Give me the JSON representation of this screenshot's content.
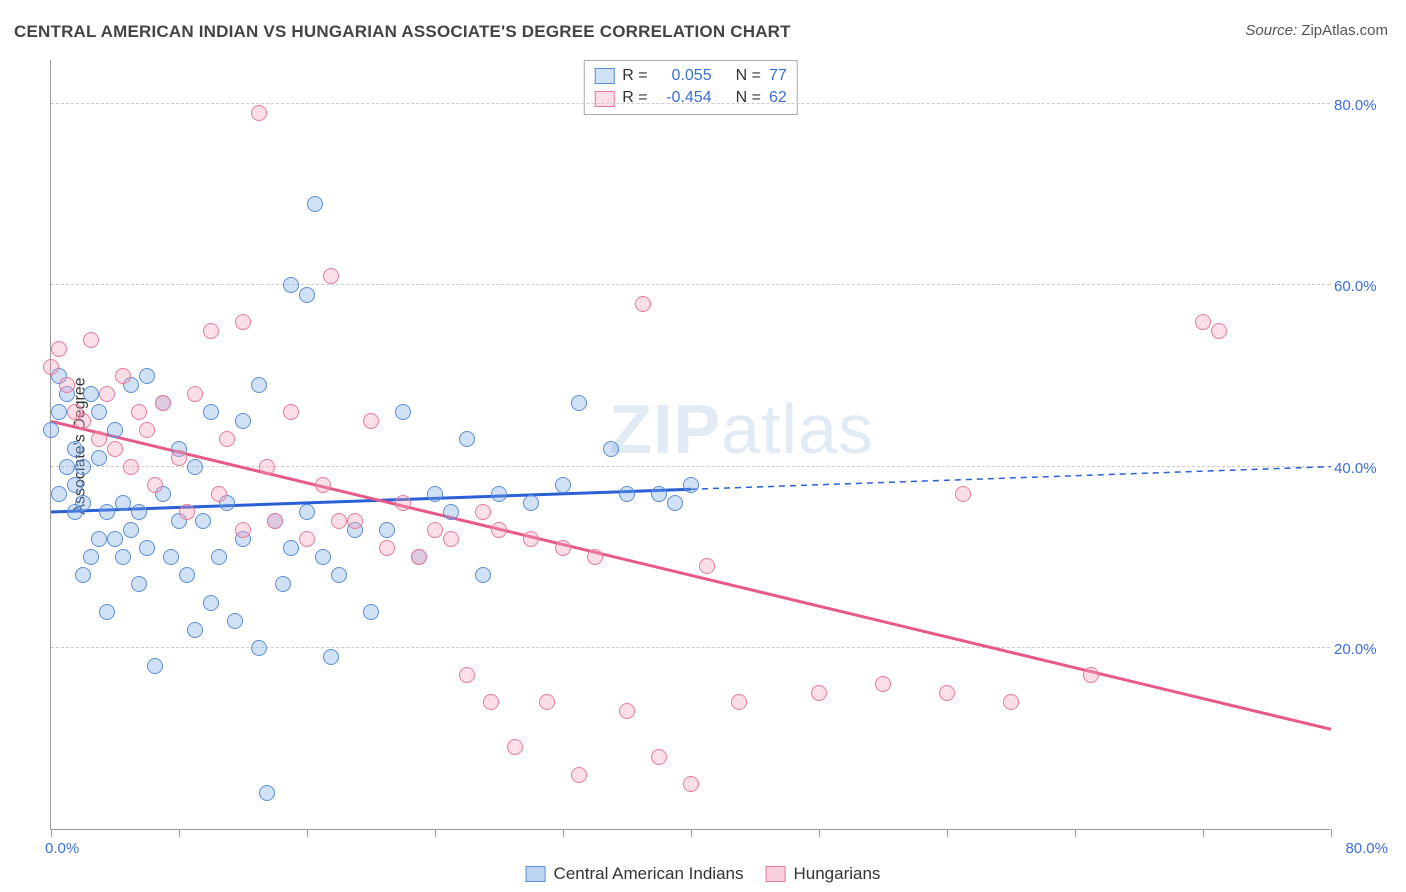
{
  "title": "CENTRAL AMERICAN INDIAN VS HUNGARIAN ASSOCIATE'S DEGREE CORRELATION CHART",
  "source_label": "Source:",
  "source_value": "ZipAtlas.com",
  "ylabel": "Associate's Degree",
  "watermark_bold": "ZIP",
  "watermark_light": "atlas",
  "chart": {
    "type": "scatter",
    "xlim": [
      0,
      80
    ],
    "ylim": [
      0,
      85
    ],
    "x_ticks": [
      0,
      8,
      16,
      24,
      32,
      40,
      48,
      56,
      64,
      72,
      80
    ],
    "x_tick_labels": {
      "0": "0.0%",
      "80": "80.0%"
    },
    "y_grid": [
      20,
      40,
      60,
      80
    ],
    "y_tick_labels": {
      "20": "20.0%",
      "40": "40.0%",
      "60": "60.0%",
      "80": "80.0%"
    },
    "background_color": "#ffffff",
    "grid_color": "#cccccc",
    "axis_color": "#999999",
    "label_color": "#3b6fd8",
    "point_radius": 8,
    "point_stroke_width": 1.5,
    "series": [
      {
        "name": "Central American Indians",
        "fill": "rgba(120,170,230,0.35)",
        "stroke": "#5a8ed8",
        "R_label": "R =",
        "R": "0.055",
        "N_label": "N =",
        "N": "77",
        "trend": {
          "x1": 0,
          "y1": 35,
          "x2": 40,
          "y2": 37.5,
          "color": "#2a5fd6",
          "width": 3,
          "dash": "none"
        },
        "trend_ext": {
          "x1": 40,
          "y1": 37.5,
          "x2": 80,
          "y2": 40,
          "color": "#2a5fd6",
          "width": 1.5,
          "dash": "6,5"
        },
        "points": [
          [
            0,
            44
          ],
          [
            0.5,
            50
          ],
          [
            0.5,
            46
          ],
          [
            0.5,
            37
          ],
          [
            1,
            40
          ],
          [
            1,
            48
          ],
          [
            1.5,
            42
          ],
          [
            1.5,
            35
          ],
          [
            1.5,
            38
          ],
          [
            2,
            36
          ],
          [
            2,
            40
          ],
          [
            2,
            28
          ],
          [
            2.5,
            48
          ],
          [
            2.5,
            30
          ],
          [
            3,
            32
          ],
          [
            3,
            41
          ],
          [
            3,
            46
          ],
          [
            3.5,
            35
          ],
          [
            3.5,
            24
          ],
          [
            4,
            32
          ],
          [
            4,
            44
          ],
          [
            4.5,
            36
          ],
          [
            4.5,
            30
          ],
          [
            5,
            33
          ],
          [
            5,
            49
          ],
          [
            5.5,
            35
          ],
          [
            5.5,
            27
          ],
          [
            6,
            31
          ],
          [
            6,
            50
          ],
          [
            6.5,
            18
          ],
          [
            7,
            37
          ],
          [
            7,
            47
          ],
          [
            7.5,
            30
          ],
          [
            8,
            42
          ],
          [
            8,
            34
          ],
          [
            8.5,
            28
          ],
          [
            9,
            22
          ],
          [
            9,
            40
          ],
          [
            9.5,
            34
          ],
          [
            10,
            25
          ],
          [
            10,
            46
          ],
          [
            10.5,
            30
          ],
          [
            11,
            36
          ],
          [
            11.5,
            23
          ],
          [
            12,
            32
          ],
          [
            12,
            45
          ],
          [
            13,
            20
          ],
          [
            13,
            49
          ],
          [
            13.5,
            4
          ],
          [
            14,
            34
          ],
          [
            14.5,
            27
          ],
          [
            15,
            60
          ],
          [
            15,
            31
          ],
          [
            16,
            35
          ],
          [
            16,
            59
          ],
          [
            16.5,
            69
          ],
          [
            17,
            30
          ],
          [
            17.5,
            19
          ],
          [
            18,
            28
          ],
          [
            19,
            33
          ],
          [
            20,
            24
          ],
          [
            21,
            33
          ],
          [
            22,
            46
          ],
          [
            23,
            30
          ],
          [
            24,
            37
          ],
          [
            25,
            35
          ],
          [
            26,
            43
          ],
          [
            27,
            28
          ],
          [
            28,
            37
          ],
          [
            30,
            36
          ],
          [
            32,
            38
          ],
          [
            33,
            47
          ],
          [
            35,
            42
          ],
          [
            36,
            37
          ],
          [
            38,
            37
          ],
          [
            39,
            36
          ],
          [
            40,
            38
          ]
        ]
      },
      {
        "name": "Hungarians",
        "fill": "rgba(245,160,185,0.35)",
        "stroke": "#e87a9a",
        "R_label": "R =",
        "R": "-0.454",
        "N_label": "N =",
        "N": "62",
        "trend": {
          "x1": 0,
          "y1": 45,
          "x2": 80,
          "y2": 11,
          "color": "#e85a85",
          "width": 3,
          "dash": "none"
        },
        "points": [
          [
            0,
            51
          ],
          [
            0.5,
            53
          ],
          [
            1,
            49
          ],
          [
            1.5,
            46
          ],
          [
            2,
            45
          ],
          [
            2.5,
            54
          ],
          [
            3,
            43
          ],
          [
            3.5,
            48
          ],
          [
            4,
            42
          ],
          [
            4.5,
            50
          ],
          [
            5,
            40
          ],
          [
            5.5,
            46
          ],
          [
            6,
            44
          ],
          [
            6.5,
            38
          ],
          [
            7,
            47
          ],
          [
            8,
            41
          ],
          [
            8.5,
            35
          ],
          [
            9,
            48
          ],
          [
            10,
            55
          ],
          [
            10.5,
            37
          ],
          [
            11,
            43
          ],
          [
            12,
            33
          ],
          [
            12,
            56
          ],
          [
            13,
            79
          ],
          [
            13.5,
            40
          ],
          [
            14,
            34
          ],
          [
            15,
            46
          ],
          [
            16,
            32
          ],
          [
            17,
            38
          ],
          [
            17.5,
            61
          ],
          [
            18,
            34
          ],
          [
            19,
            34
          ],
          [
            20,
            45
          ],
          [
            21,
            31
          ],
          [
            22,
            36
          ],
          [
            23,
            30
          ],
          [
            24,
            33
          ],
          [
            25,
            32
          ],
          [
            26,
            17
          ],
          [
            27,
            35
          ],
          [
            27.5,
            14
          ],
          [
            28,
            33
          ],
          [
            29,
            9
          ],
          [
            30,
            32
          ],
          [
            31,
            14
          ],
          [
            32,
            31
          ],
          [
            33,
            6
          ],
          [
            34,
            30
          ],
          [
            36,
            13
          ],
          [
            37,
            58
          ],
          [
            38,
            8
          ],
          [
            40,
            5
          ],
          [
            41,
            29
          ],
          [
            43,
            14
          ],
          [
            48,
            15
          ],
          [
            52,
            16
          ],
          [
            56,
            15
          ],
          [
            57,
            37
          ],
          [
            60,
            14
          ],
          [
            65,
            17
          ],
          [
            72,
            56
          ],
          [
            73,
            55
          ]
        ]
      }
    ]
  },
  "bottom_legend": [
    {
      "label": "Central American Indians",
      "fill": "rgba(120,170,230,0.5)",
      "stroke": "#5a8ed8"
    },
    {
      "label": "Hungarians",
      "fill": "rgba(245,160,185,0.5)",
      "stroke": "#e87a9a"
    }
  ]
}
